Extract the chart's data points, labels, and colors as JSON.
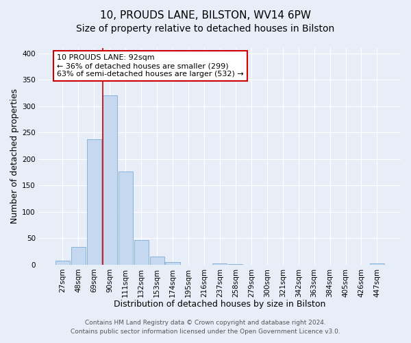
{
  "title": "10, PROUDS LANE, BILSTON, WV14 6PW",
  "subtitle": "Size of property relative to detached houses in Bilston",
  "xlabel": "Distribution of detached houses by size in Bilston",
  "ylabel": "Number of detached properties",
  "bin_labels": [
    "27sqm",
    "48sqm",
    "69sqm",
    "90sqm",
    "111sqm",
    "132sqm",
    "153sqm",
    "174sqm",
    "195sqm",
    "216sqm",
    "237sqm",
    "258sqm",
    "279sqm",
    "300sqm",
    "321sqm",
    "342sqm",
    "363sqm",
    "384sqm",
    "405sqm",
    "426sqm",
    "447sqm"
  ],
  "bar_heights": [
    8,
    33,
    238,
    320,
    176,
    46,
    16,
    5,
    0,
    0,
    3,
    1,
    0,
    0,
    0,
    0,
    0,
    0,
    0,
    0,
    2
  ],
  "bar_color": "#c5d8ef",
  "bar_edge_color": "#7aadd4",
  "vline_color": "#cc0000",
  "annotation_text": "10 PROUDS LANE: 92sqm\n← 36% of detached houses are smaller (299)\n63% of semi-detached houses are larger (532) →",
  "annotation_box_color": "#ffffff",
  "annotation_box_edge": "#cc0000",
  "ylim": [
    0,
    410
  ],
  "yticks": [
    0,
    50,
    100,
    150,
    200,
    250,
    300,
    350,
    400
  ],
  "footer1": "Contains HM Land Registry data © Crown copyright and database right 2024.",
  "footer2": "Contains public sector information licensed under the Open Government Licence v3.0.",
  "bg_color": "#e8eef8",
  "grid_color": "#ffffff",
  "title_fontsize": 11,
  "axis_label_fontsize": 9,
  "tick_fontsize": 7.5,
  "footer_fontsize": 6.5
}
